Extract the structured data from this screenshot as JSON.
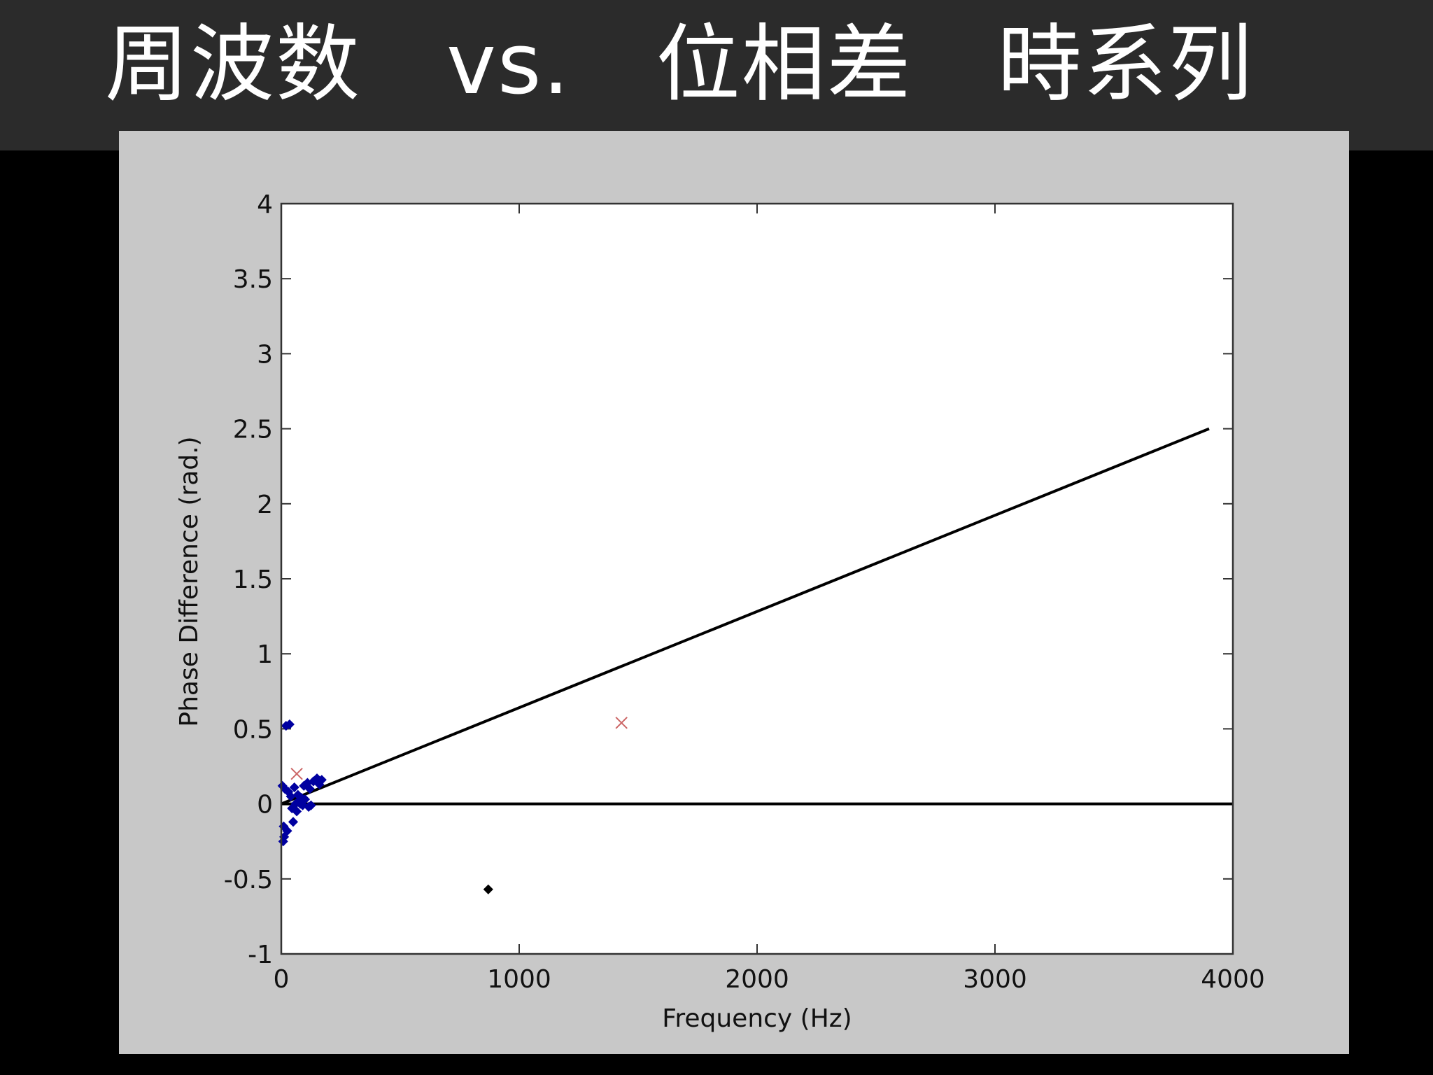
{
  "slide": {
    "title": "周波数　vs.　位相差　時系列"
  },
  "colors": {
    "title_bar": "#2b2b2b",
    "figure_background": "#c8c8c8",
    "plot_background": "#ffffff",
    "line": "#000000",
    "blue_points": "#0000a0",
    "red_marker": "#cc6666"
  },
  "chart_data": {
    "type": "scatter",
    "title": "",
    "xlabel": "Frequency (Hz)",
    "ylabel": "Phase Difference (rad.)",
    "xlim": [
      0,
      4000
    ],
    "ylim": [
      -1,
      4
    ],
    "xticks": [
      0,
      1000,
      2000,
      3000,
      4000
    ],
    "xtick_labels": [
      "0",
      "1000",
      "2000",
      "3000",
      "4000"
    ],
    "yticks": [
      -1,
      -0.5,
      0,
      0.5,
      1,
      1.5,
      2,
      2.5,
      3,
      3.5,
      4
    ],
    "ytick_labels": [
      "-1",
      "-0.5",
      "0",
      "0.5",
      "1",
      "1.5",
      "2",
      "2.5",
      "3",
      "3.5",
      "4"
    ],
    "grid": false,
    "legend": false,
    "lines": [
      {
        "x": [
          0,
          3900
        ],
        "y": [
          0,
          2.5
        ],
        "color": "#000000"
      },
      {
        "x": [
          0,
          4000
        ],
        "y": [
          0,
          0
        ],
        "color": "#000000"
      }
    ],
    "series": [
      {
        "marker": "diamond",
        "color": "#0000a0",
        "points": [
          [
            20,
            0.52
          ],
          [
            35,
            0.53
          ],
          [
            5,
            0.12
          ],
          [
            15,
            0.1
          ],
          [
            30,
            0.08
          ],
          [
            40,
            0.05
          ],
          [
            55,
            0.11
          ],
          [
            70,
            0.06
          ],
          [
            85,
            0.04
          ],
          [
            95,
            0.12
          ],
          [
            110,
            0.14
          ],
          [
            120,
            0.1
          ],
          [
            135,
            0.15
          ],
          [
            150,
            0.17
          ],
          [
            160,
            0.13
          ],
          [
            170,
            0.16
          ],
          [
            60,
            0.0
          ],
          [
            75,
            0.02
          ],
          [
            90,
            -0.01
          ],
          [
            100,
            0.03
          ],
          [
            115,
            -0.02
          ],
          [
            125,
            -0.01
          ],
          [
            45,
            -0.03
          ],
          [
            10,
            -0.15
          ],
          [
            12,
            -0.22
          ],
          [
            8,
            -0.25
          ],
          [
            25,
            -0.18
          ],
          [
            50,
            -0.12
          ],
          [
            65,
            -0.05
          ],
          [
            80,
            0.0
          ]
        ]
      },
      {
        "marker": "diamond",
        "color": "#000000",
        "points": [
          [
            870,
            -0.57
          ]
        ]
      },
      {
        "marker": "x",
        "color": "#cc6666",
        "points": [
          [
            1430,
            0.54
          ],
          [
            65,
            0.2
          ]
        ]
      }
    ]
  }
}
